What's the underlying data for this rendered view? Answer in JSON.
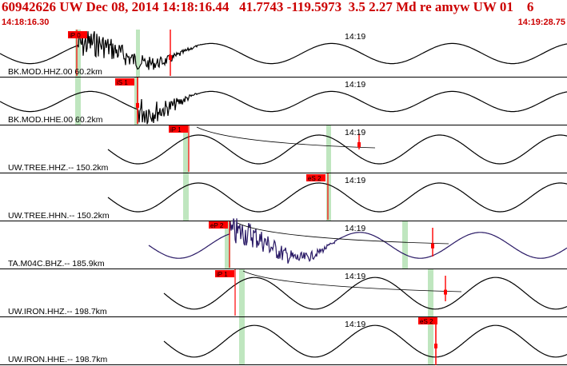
{
  "header": {
    "event_title": "60942626 UW Dec 08, 2014 14:18:16.44   41.7743 -119.5973  3.5 2.27 Md re amyw UW 01    6",
    "time_start": "14:18:16.30",
    "time_end": "14:19:28.75"
  },
  "colors": {
    "header_text": "#cc0000",
    "trace": "#000000",
    "trace_alt": "#2a1a66",
    "pick_box": "#ff0000",
    "phase_window": "#bfe6bf"
  },
  "traces": [
    {
      "label": "BK.MOD.HHZ.00 60.2km",
      "tick": "14:19",
      "pick": "iP 0",
      "style": "noisy-early"
    },
    {
      "label": "BK.MOD.HHE.00 60.2km",
      "tick": "14:19",
      "pick": "iS 1",
      "style": "noisy-early"
    },
    {
      "label": "UW.TREE.HHZ.-- 150.2km",
      "tick": "14:19",
      "pick": "iP 1",
      "style": "wave"
    },
    {
      "label": "UW.TREE.HHN.-- 150.2km",
      "tick": "14:19",
      "pick": "eS 2",
      "style": "wave"
    },
    {
      "label": "TA.M04C.BHZ.-- 185.9km",
      "tick": "14:19",
      "pick": "eP 2",
      "style": "noisy-mid"
    },
    {
      "label": "UW.IRON.HHZ.-- 198.7km",
      "tick": "14:19",
      "pick": "iP 1",
      "style": "wave-late"
    },
    {
      "label": "UW.IRON.HHE.-- 198.7km",
      "tick": "14:19",
      "pick": "eS 2",
      "style": "wave-late"
    }
  ]
}
